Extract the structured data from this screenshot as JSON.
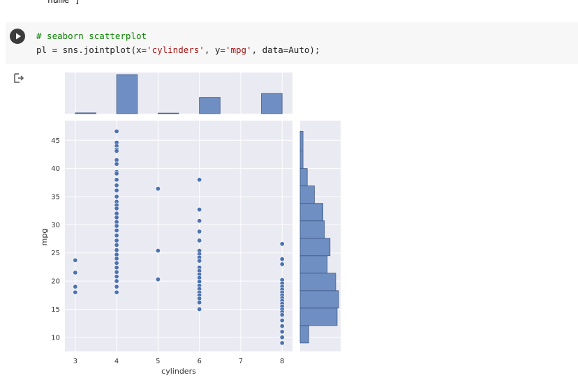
{
  "notebook": {
    "previous_output_tail": "name ]",
    "cell": {
      "comment": "# seaborn scatterplot",
      "code_parts": [
        "pl = sns.jointplot(x=",
        "'cylinders'",
        ", y=",
        "'mpg'",
        ", data=Auto);"
      ],
      "run_button_icon": "play-icon"
    },
    "output_icon": "output-arrow-icon"
  },
  "colors": {
    "point": "#4c72b0",
    "bar_fill": "#6f8fc2",
    "bar_edge": "#3f5a85",
    "axes_bg": "#eaeaf2",
    "grid": "#ffffff",
    "comment": "#0a8300",
    "string": "#a31515"
  },
  "chart_data": {
    "type": "scatter",
    "xlabel": "cylinders",
    "ylabel": "mpg",
    "xlim": [
      2.75,
      8.25
    ],
    "ylim": [
      7.5,
      48.5
    ],
    "xticks": [
      3,
      4,
      5,
      6,
      7,
      8
    ],
    "yticks": [
      10,
      15,
      20,
      25,
      30,
      35,
      40,
      45
    ],
    "grid": true,
    "points": [
      {
        "x": 3,
        "y": 23.7
      },
      {
        "x": 3,
        "y": 21.5
      },
      {
        "x": 3,
        "y": 19.0
      },
      {
        "x": 3,
        "y": 18.0
      },
      {
        "x": 4,
        "y": 46.6
      },
      {
        "x": 4,
        "y": 44.6
      },
      {
        "x": 4,
        "y": 44.0
      },
      {
        "x": 4,
        "y": 43.4
      },
      {
        "x": 4,
        "y": 43.1
      },
      {
        "x": 4,
        "y": 41.5
      },
      {
        "x": 4,
        "y": 40.8
      },
      {
        "x": 4,
        "y": 39.4
      },
      {
        "x": 4,
        "y": 39.1
      },
      {
        "x": 4,
        "y": 38.0
      },
      {
        "x": 4,
        "y": 37.0
      },
      {
        "x": 4,
        "y": 36.1
      },
      {
        "x": 4,
        "y": 35.0
      },
      {
        "x": 4,
        "y": 34.1
      },
      {
        "x": 4,
        "y": 33.5
      },
      {
        "x": 4,
        "y": 32.9
      },
      {
        "x": 4,
        "y": 32.0
      },
      {
        "x": 4,
        "y": 31.3
      },
      {
        "x": 4,
        "y": 30.5
      },
      {
        "x": 4,
        "y": 29.8
      },
      {
        "x": 4,
        "y": 29.0
      },
      {
        "x": 4,
        "y": 28.1
      },
      {
        "x": 4,
        "y": 27.2
      },
      {
        "x": 4,
        "y": 26.4
      },
      {
        "x": 4,
        "y": 25.5
      },
      {
        "x": 4,
        "y": 24.7
      },
      {
        "x": 4,
        "y": 24.0
      },
      {
        "x": 4,
        "y": 23.2
      },
      {
        "x": 4,
        "y": 22.4
      },
      {
        "x": 4,
        "y": 21.6
      },
      {
        "x": 4,
        "y": 20.8
      },
      {
        "x": 4,
        "y": 20.0
      },
      {
        "x": 4,
        "y": 19.0
      },
      {
        "x": 4,
        "y": 18.0
      },
      {
        "x": 5,
        "y": 36.4
      },
      {
        "x": 5,
        "y": 25.4
      },
      {
        "x": 5,
        "y": 20.3
      },
      {
        "x": 6,
        "y": 38.0
      },
      {
        "x": 6,
        "y": 32.7
      },
      {
        "x": 6,
        "y": 30.7
      },
      {
        "x": 6,
        "y": 28.8
      },
      {
        "x": 6,
        "y": 27.2
      },
      {
        "x": 6,
        "y": 25.4
      },
      {
        "x": 6,
        "y": 24.8
      },
      {
        "x": 6,
        "y": 24.2
      },
      {
        "x": 6,
        "y": 23.6
      },
      {
        "x": 6,
        "y": 22.4
      },
      {
        "x": 6,
        "y": 21.8
      },
      {
        "x": 6,
        "y": 21.2
      },
      {
        "x": 6,
        "y": 20.6
      },
      {
        "x": 6,
        "y": 19.9
      },
      {
        "x": 6,
        "y": 19.2
      },
      {
        "x": 6,
        "y": 18.6
      },
      {
        "x": 6,
        "y": 18.0
      },
      {
        "x": 6,
        "y": 17.5
      },
      {
        "x": 6,
        "y": 16.9
      },
      {
        "x": 6,
        "y": 16.2
      },
      {
        "x": 6,
        "y": 15.0
      },
      {
        "x": 8,
        "y": 26.6
      },
      {
        "x": 8,
        "y": 23.9
      },
      {
        "x": 8,
        "y": 23.0
      },
      {
        "x": 8,
        "y": 20.2
      },
      {
        "x": 8,
        "y": 19.6
      },
      {
        "x": 8,
        "y": 19.0
      },
      {
        "x": 8,
        "y": 18.5
      },
      {
        "x": 8,
        "y": 18.0
      },
      {
        "x": 8,
        "y": 17.5
      },
      {
        "x": 8,
        "y": 17.0
      },
      {
        "x": 8,
        "y": 16.5
      },
      {
        "x": 8,
        "y": 16.0
      },
      {
        "x": 8,
        "y": 15.5
      },
      {
        "x": 8,
        "y": 15.0
      },
      {
        "x": 8,
        "y": 14.5
      },
      {
        "x": 8,
        "y": 14.0
      },
      {
        "x": 8,
        "y": 13.0
      },
      {
        "x": 8,
        "y": 12.0
      },
      {
        "x": 8,
        "y": 11.0
      },
      {
        "x": 8,
        "y": 10.0
      },
      {
        "x": 8,
        "y": 9.0
      }
    ],
    "top_histogram": [
      {
        "x_start": 3.0,
        "x_end": 3.5,
        "height": 4
      },
      {
        "x_start": 4.0,
        "x_end": 4.5,
        "height": 199
      },
      {
        "x_start": 5.0,
        "x_end": 5.5,
        "height": 3
      },
      {
        "x_start": 6.0,
        "x_end": 6.5,
        "height": 83
      },
      {
        "x_start": 7.5,
        "x_end": 8.0,
        "height": 103
      }
    ],
    "right_histogram": [
      {
        "y_start": 9.0,
        "y_end": 12.1,
        "count": 6
      },
      {
        "y_start": 12.1,
        "y_end": 15.2,
        "count": 26
      },
      {
        "y_start": 15.2,
        "y_end": 18.3,
        "count": 27
      },
      {
        "y_start": 18.3,
        "y_end": 21.4,
        "count": 25
      },
      {
        "y_start": 21.4,
        "y_end": 24.5,
        "count": 19
      },
      {
        "y_start": 24.5,
        "y_end": 27.6,
        "count": 21
      },
      {
        "y_start": 27.6,
        "y_end": 30.7,
        "count": 17
      },
      {
        "y_start": 30.7,
        "y_end": 33.8,
        "count": 16
      },
      {
        "y_start": 33.8,
        "y_end": 36.9,
        "count": 10
      },
      {
        "y_start": 36.9,
        "y_end": 40.0,
        "count": 5
      },
      {
        "y_start": 40.0,
        "y_end": 43.1,
        "count": 2
      },
      {
        "y_start": 43.1,
        "y_end": 46.6,
        "count": 2
      }
    ]
  }
}
